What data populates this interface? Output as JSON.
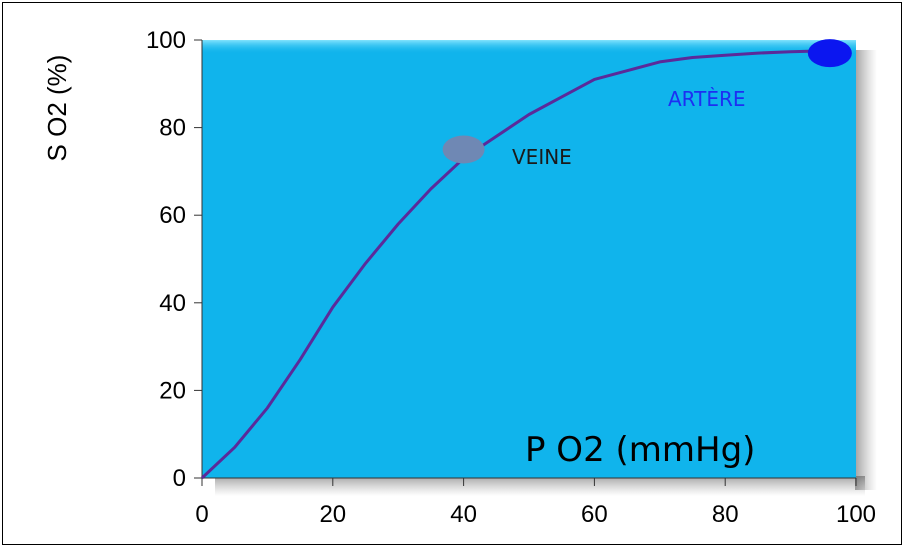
{
  "chart_data": {
    "type": "line",
    "title": "",
    "xlabel": "P O2 (mmHg)",
    "ylabel": "S O2 (%)",
    "xlim": [
      0,
      100
    ],
    "ylim": [
      0,
      100
    ],
    "x_ticks": [
      "0",
      "20",
      "40",
      "60",
      "80",
      "100"
    ],
    "y_ticks": [
      "0",
      "20",
      "40",
      "60",
      "80",
      "100"
    ],
    "grid": false,
    "legend": "none",
    "series": [
      {
        "color": "#5b2a9a",
        "x": [
          0,
          5,
          10,
          15,
          20,
          25,
          30,
          35,
          40,
          45,
          50,
          55,
          60,
          65,
          70,
          75,
          80,
          85,
          90,
          95,
          98
        ],
        "y": [
          0,
          7,
          16,
          27,
          39,
          49,
          58,
          66,
          73,
          78,
          83,
          87,
          91,
          93,
          95,
          96,
          96.5,
          97,
          97.3,
          97.5,
          97
        ]
      }
    ],
    "annotations": [
      {
        "label": "VEINE",
        "x": 40,
        "y": 75,
        "marker_color": "#6f88b4",
        "text_color": "#1a1a1a"
      },
      {
        "label": "ARTÈRE",
        "x": 96,
        "y": 97,
        "marker_color": "#0b16f0",
        "text_color": "#1d2ff2"
      }
    ],
    "plot_background": "#10b4ec"
  }
}
